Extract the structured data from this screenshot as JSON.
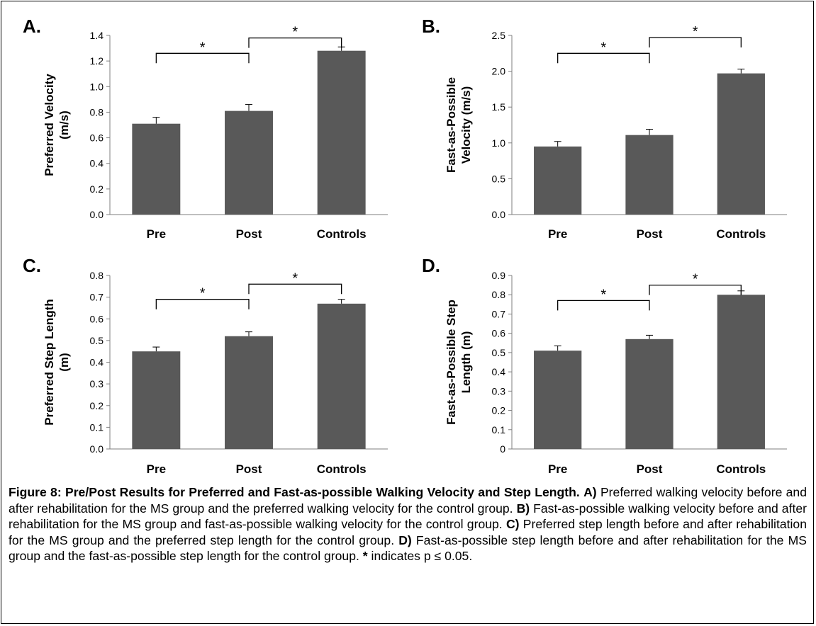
{
  "chart_data": [
    {
      "type": "bar",
      "panel_label": "A.",
      "ylabel_lines": [
        "Preferred Velocity",
        "(m/s)"
      ],
      "categories": [
        "Pre",
        "Post",
        "Controls"
      ],
      "values": [
        0.71,
        0.81,
        1.28
      ],
      "errors": [
        0.05,
        0.05,
        0.03
      ],
      "ylim": [
        0,
        1.4
      ],
      "ticks": [
        "0.0",
        "0.2",
        "0.4",
        "0.6",
        "0.8",
        "1.0",
        "1.2",
        "1.4"
      ],
      "tick_values": [
        0,
        0.2,
        0.4,
        0.6,
        0.8,
        1.0,
        1.2,
        1.4
      ],
      "bar_color": "#595959",
      "significance": [
        {
          "from": 0,
          "to": 1,
          "label": "*",
          "level": 1.26
        },
        {
          "from": 1,
          "to": 2,
          "label": "*",
          "level": 1.38
        }
      ]
    },
    {
      "type": "bar",
      "panel_label": "B.",
      "ylabel_lines": [
        "Fast-as-Possible",
        "Velocity (m/s)"
      ],
      "categories": [
        "Pre",
        "Post",
        "Controls"
      ],
      "values": [
        0.95,
        1.11,
        1.97
      ],
      "errors": [
        0.07,
        0.08,
        0.06
      ],
      "ylim": [
        0,
        2.5
      ],
      "ticks": [
        "0.0",
        "0.5",
        "1.0",
        "1.5",
        "2.0",
        "2.5"
      ],
      "tick_values": [
        0,
        0.5,
        1.0,
        1.5,
        2.0,
        2.5
      ],
      "bar_color": "#595959",
      "significance": [
        {
          "from": 0,
          "to": 1,
          "label": "*",
          "level": 2.25
        },
        {
          "from": 1,
          "to": 2,
          "label": "*",
          "level": 2.47
        }
      ]
    },
    {
      "type": "bar",
      "panel_label": "C.",
      "ylabel_lines": [
        "Preferred Step Length",
        "(m)"
      ],
      "categories": [
        "Pre",
        "Post",
        "Controls"
      ],
      "values": [
        0.45,
        0.52,
        0.67
      ],
      "errors": [
        0.02,
        0.02,
        0.02
      ],
      "ylim": [
        0,
        0.8
      ],
      "ticks": [
        "0.0",
        "0.1",
        "0.2",
        "0.3",
        "0.4",
        "0.5",
        "0.6",
        "0.7",
        "0.8"
      ],
      "tick_values": [
        0,
        0.1,
        0.2,
        0.3,
        0.4,
        0.5,
        0.6,
        0.7,
        0.8
      ],
      "bar_color": "#595959",
      "significance": [
        {
          "from": 0,
          "to": 1,
          "label": "*",
          "level": 0.69
        },
        {
          "from": 1,
          "to": 2,
          "label": "*",
          "level": 0.76
        }
      ]
    },
    {
      "type": "bar",
      "panel_label": "D.",
      "ylabel_lines": [
        "Fast-as-Possible Step",
        "Length (m)"
      ],
      "categories": [
        "Pre",
        "Post",
        "Controls"
      ],
      "values": [
        0.51,
        0.57,
        0.8
      ],
      "errors": [
        0.025,
        0.02,
        0.02
      ],
      "ylim": [
        0,
        0.9
      ],
      "ticks": [
        "0",
        "0.1",
        "0.2",
        "0.3",
        "0.4",
        "0.5",
        "0.6",
        "0.7",
        "0.8",
        "0.9"
      ],
      "tick_values": [
        0,
        0.1,
        0.2,
        0.3,
        0.4,
        0.5,
        0.6,
        0.7,
        0.8,
        0.9
      ],
      "bar_color": "#595959",
      "significance": [
        {
          "from": 0,
          "to": 1,
          "label": "*",
          "level": 0.77
        },
        {
          "from": 1,
          "to": 2,
          "label": "*",
          "level": 0.85
        }
      ]
    }
  ],
  "caption": {
    "title": "Figure 8: Pre/Post Results for Preferred and Fast-as-possible Walking Velocity and Step Length.",
    "a_label": "A)",
    "a_text": " Preferred walking velocity before and after rehabilitation for the MS group and the preferred walking velocity for the control group. ",
    "b_label": "B)",
    "b_text": " Fast-as-possible walking velocity before and after rehabilitation for the MS group and fast-as-possible walking velocity for the control group. ",
    "c_label": "C)",
    "c_text": " Preferred step length before and after rehabilitation for the MS group and the preferred step length for the control group. ",
    "d_label": "D)",
    "d_text": " Fast-as-possible step length before and after rehabilitation for the MS group and the fast-as-possible step length for the control group. ",
    "star_label": "*",
    "star_text": " indicates p ≤ 0.05."
  }
}
